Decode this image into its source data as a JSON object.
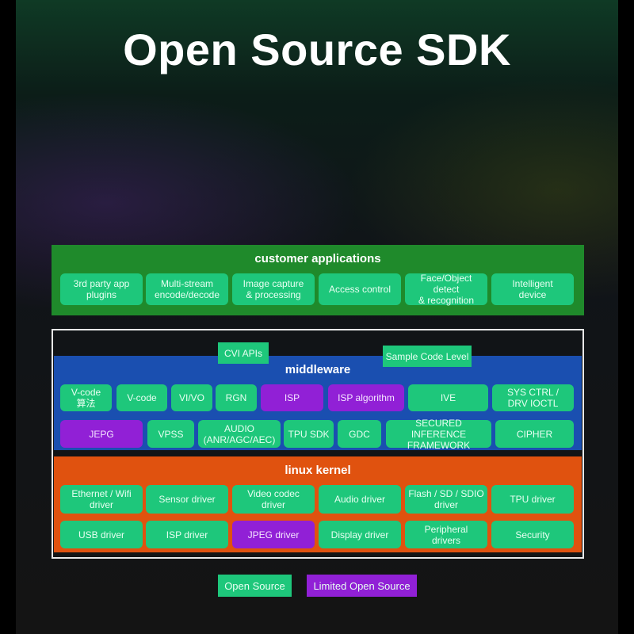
{
  "title": "Open Source SDK",
  "colors": {
    "open_source": "#1ec77b",
    "limited_open_source": "#9120d6",
    "customer_applications": "#1f8a2b",
    "middleware": "#1a4fb0",
    "linux_kernel": "#e0520f"
  },
  "customer_applications": {
    "title": "customer applications",
    "items": [
      "3rd party app\nplugins",
      "Multi-stream\nencode/decode",
      "Image capture\n& processing",
      "Access control",
      "Face/Object\ndetect\n& recognition",
      "Intelligent\ndevice"
    ]
  },
  "cvi_apis": "CVI APIs",
  "sample_code_level": "Sample Code Level",
  "middleware": {
    "title": "middleware",
    "row1": [
      {
        "label": "V-code\n算法",
        "limited": false
      },
      {
        "label": "V-code",
        "limited": false
      },
      {
        "label": "VI/VO",
        "limited": false
      },
      {
        "label": "RGN",
        "limited": false
      },
      {
        "label": "ISP",
        "limited": true
      },
      {
        "label": "ISP algorithm",
        "limited": true
      },
      {
        "label": "IVE",
        "limited": false
      },
      {
        "label": "SYS CTRL /\nDRV IOCTL",
        "limited": false
      }
    ],
    "row2": [
      {
        "label": "JEPG",
        "limited": true
      },
      {
        "label": "VPSS",
        "limited": false
      },
      {
        "label": "AUDIO\n(ANR/AGC/AEC)",
        "limited": false
      },
      {
        "label": "TPU SDK",
        "limited": false
      },
      {
        "label": "GDC",
        "limited": false
      },
      {
        "label": "SECURED INFERENCE\nFRAMEWORK",
        "limited": false
      },
      {
        "label": "CIPHER",
        "limited": false
      }
    ]
  },
  "linux_kernel": {
    "title": "linux kernel",
    "row1": [
      {
        "label": "Ethernet / Wifi\ndriver",
        "limited": false
      },
      {
        "label": "Sensor driver",
        "limited": false
      },
      {
        "label": "Video codec\ndriver",
        "limited": false
      },
      {
        "label": "Audio driver",
        "limited": false
      },
      {
        "label": "Flash / SD / SDIO\ndriver",
        "limited": false
      },
      {
        "label": "TPU driver",
        "limited": false
      }
    ],
    "row2": [
      {
        "label": "USB driver",
        "limited": false
      },
      {
        "label": "ISP driver",
        "limited": false
      },
      {
        "label": "JPEG driver",
        "limited": true
      },
      {
        "label": "Display driver",
        "limited": false
      },
      {
        "label": "Peripheral\ndrivers",
        "limited": false
      },
      {
        "label": "Security",
        "limited": false
      }
    ]
  },
  "legend": {
    "open_source": "Open Source",
    "limited_open_source": "Limited Open Source"
  }
}
